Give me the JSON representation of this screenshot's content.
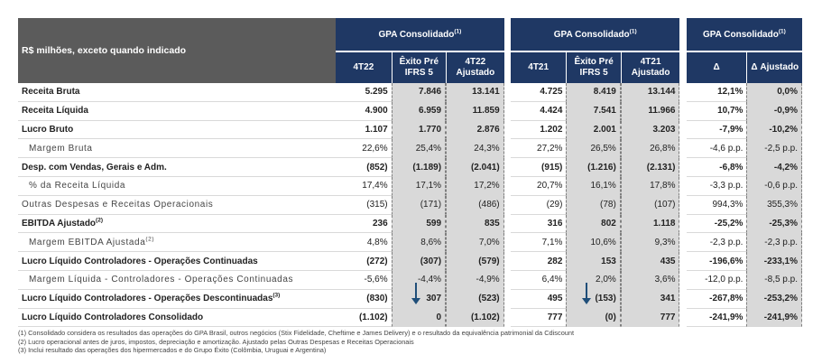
{
  "header": {
    "title": "R$ milhões, exceto quando indicado",
    "groups": [
      "GPA Consolidado",
      "GPA Consolidado",
      "GPA Consolidado"
    ],
    "group_sup": "(1)",
    "cols": [
      "4T22",
      "Êxito Pré IFRS 5",
      "4T22 Ajustado",
      "4T21",
      "Êxito Pré IFRS 5",
      "4T21 Ajustado",
      "Δ",
      "Δ Ajustado"
    ]
  },
  "rows": [
    {
      "label": "Receita Bruta",
      "sup": "",
      "style": "bold",
      "v": [
        "5.295",
        "7.846",
        "13.141",
        "4.725",
        "8.419",
        "13.144",
        "12,1%",
        "0,0%"
      ]
    },
    {
      "label": "Receita Líquida",
      "sup": "",
      "style": "bold",
      "v": [
        "4.900",
        "6.959",
        "11.859",
        "4.424",
        "7.541",
        "11.966",
        "10,7%",
        "-0,9%"
      ]
    },
    {
      "label": "Lucro Bruto",
      "sup": "",
      "style": "bold",
      "v": [
        "1.107",
        "1.770",
        "2.876",
        "1.202",
        "2.001",
        "3.203",
        "-7,9%",
        "-10,2%"
      ]
    },
    {
      "label": "Margem Bruta",
      "sup": "",
      "style": "sub",
      "v": [
        "22,6%",
        "25,4%",
        "24,3%",
        "27,2%",
        "26,5%",
        "26,8%",
        "-4,6 p.p.",
        "-2,5 p.p."
      ]
    },
    {
      "label": "Desp. com Vendas, Gerais e Adm.",
      "sup": "",
      "style": "bold",
      "v": [
        "(852)",
        "(1.189)",
        "(2.041)",
        "(915)",
        "(1.216)",
        "(2.131)",
        "-6,8%",
        "-4,2%"
      ]
    },
    {
      "label": "% da Receita Líquida",
      "sup": "",
      "style": "sub",
      "v": [
        "17,4%",
        "17,1%",
        "17,2%",
        "20,7%",
        "16,1%",
        "17,8%",
        "-3,3 p.p.",
        "-0,6 p.p."
      ]
    },
    {
      "label": "Outras Despesas e Receitas Operacionais",
      "sup": "",
      "style": "sp",
      "v": [
        "(315)",
        "(171)",
        "(486)",
        "(29)",
        "(78)",
        "(107)",
        "994,3%",
        "355,3%"
      ]
    },
    {
      "label": "EBITDA Ajustado",
      "sup": "(2)",
      "style": "bold",
      "v": [
        "236",
        "599",
        "835",
        "316",
        "802",
        "1.118",
        "-25,2%",
        "-25,3%"
      ]
    },
    {
      "label": "Margem EBITDA Ajustada",
      "sup": "(2)",
      "style": "sub",
      "v": [
        "4,8%",
        "8,6%",
        "7,0%",
        "7,1%",
        "10,6%",
        "9,3%",
        "-2,3 p.p.",
        "-2,3 p.p."
      ]
    },
    {
      "label": "Lucro Líquido Controladores - Operações Continuadas",
      "sup": "",
      "style": "bold",
      "v": [
        "(272)",
        "(307)",
        "(579)",
        "282",
        "153",
        "435",
        "-196,6%",
        "-233,1%"
      ]
    },
    {
      "label": "Margem Líquida - Controladores - Operações Continuadas",
      "sup": "",
      "style": "sub",
      "v": [
        "-5,6%",
        "-4,4%",
        "-4,9%",
        "6,4%",
        "2,0%",
        "3,6%",
        "-12,0 p.p.",
        "-8,5 p.p."
      ]
    },
    {
      "label": "Lucro Líquido Controladores - Operações Descontinuadas",
      "sup": "(3)",
      "style": "bold",
      "v": [
        "(830)",
        "307",
        "(523)",
        "495",
        "(153)",
        "341",
        "-267,8%",
        "-253,2%"
      ]
    },
    {
      "label": "Lucro Líquido Controladores Consolidado",
      "sup": "",
      "style": "bold",
      "v": [
        "(1.102)",
        "0",
        "(1.102)",
        "777",
        "(0)",
        "777",
        "-241,9%",
        "-241,9%"
      ]
    }
  ],
  "notes": [
    "(1) Consolidado considera os resultados das operações do GPA Brasil, outros negócios (Stix Fidelidade, Cheftime e James Delivery) e o resultado da equivalência patrimonial da Cdiscount",
    "(2) Lucro operacional antes de juros, impostos, depreciação e amortização. Ajustado pelas Outras Despesas e Receitas Operacionais",
    "(3) Inclui resultado das operações dos hipermercados e do Grupo Éxito (Colômbia, Uruguai e Argentina)"
  ]
}
